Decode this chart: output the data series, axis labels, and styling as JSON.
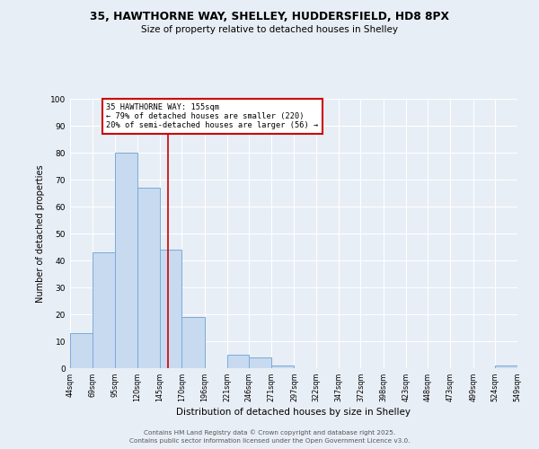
{
  "title_line1": "35, HAWTHORNE WAY, SHELLEY, HUDDERSFIELD, HD8 8PX",
  "title_line2": "Size of property relative to detached houses in Shelley",
  "xlabel": "Distribution of detached houses by size in Shelley",
  "ylabel": "Number of detached properties",
  "bar_edges": [
    44,
    69,
    95,
    120,
    145,
    170,
    196,
    221,
    246,
    271,
    297,
    322,
    347,
    372,
    398,
    423,
    448,
    473,
    499,
    524,
    549
  ],
  "bar_heights": [
    13,
    43,
    80,
    67,
    44,
    19,
    0,
    5,
    4,
    1,
    0,
    0,
    0,
    0,
    0,
    0,
    0,
    0,
    0,
    1
  ],
  "bar_color": "#c8daf0",
  "bar_edgecolor": "#7aabda",
  "vline_x": 155,
  "vline_color": "#cc0000",
  "annotation_title": "35 HAWTHORNE WAY: 155sqm",
  "annotation_line1": "← 79% of detached houses are smaller (220)",
  "annotation_line2": "20% of semi-detached houses are larger (56) →",
  "annotation_box_color": "#cc0000",
  "ylim": [
    0,
    100
  ],
  "yticks": [
    0,
    10,
    20,
    30,
    40,
    50,
    60,
    70,
    80,
    90,
    100
  ],
  "background_color": "#e8eef5",
  "plot_background": "#e8eef5",
  "tick_labels": [
    "44sqm",
    "69sqm",
    "95sqm",
    "120sqm",
    "145sqm",
    "170sqm",
    "196sqm",
    "221sqm",
    "246sqm",
    "271sqm",
    "297sqm",
    "322sqm",
    "347sqm",
    "372sqm",
    "398sqm",
    "423sqm",
    "448sqm",
    "473sqm",
    "499sqm",
    "524sqm",
    "549sqm"
  ],
  "footer_line1": "Contains HM Land Registry data © Crown copyright and database right 2025.",
  "footer_line2": "Contains public sector information licensed under the Open Government Licence v3.0."
}
